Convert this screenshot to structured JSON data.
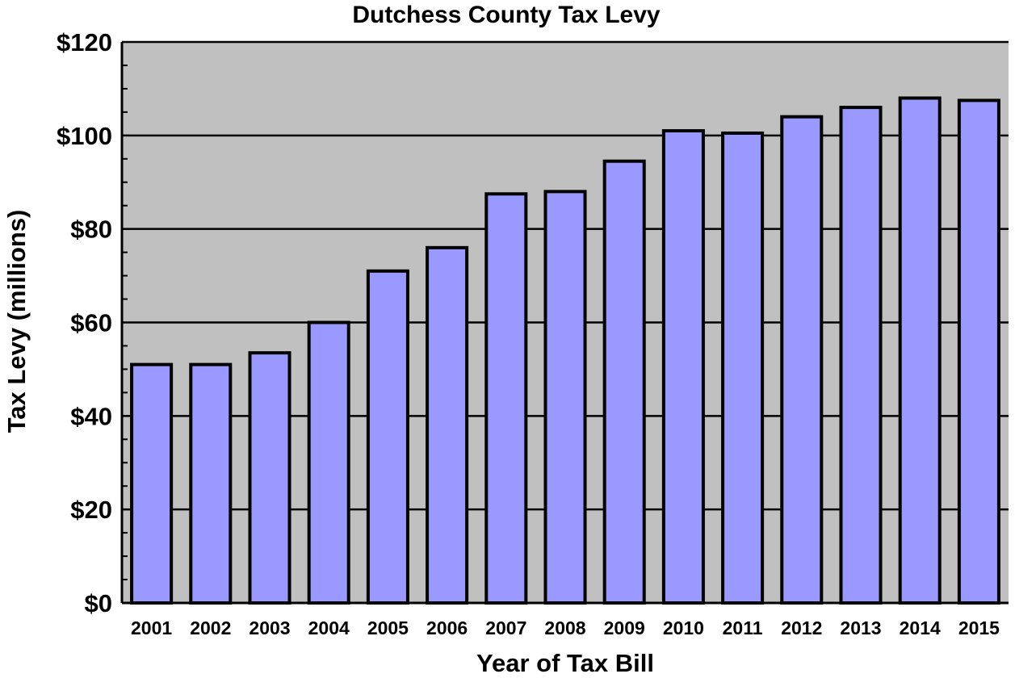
{
  "chart_data": {
    "type": "bar",
    "title": "Dutchess County Tax Levy",
    "xlabel": "Year of Tax Bill",
    "ylabel": "Tax Levy (millions)",
    "categories": [
      "2001",
      "2002",
      "2003",
      "2004",
      "2005",
      "2006",
      "2007",
      "2008",
      "2009",
      "2010",
      "2011",
      "2012",
      "2013",
      "2014",
      "2015"
    ],
    "values": [
      51,
      51,
      53.5,
      60,
      71,
      76,
      87.5,
      88,
      94.5,
      101,
      100.5,
      104,
      106,
      108,
      107.5
    ],
    "ylim": [
      0,
      120
    ],
    "yticks": [
      0,
      20,
      40,
      60,
      80,
      100,
      120
    ],
    "ytick_labels": [
      "$0",
      "$20",
      "$40",
      "$60",
      "$80",
      "$100",
      "$120"
    ],
    "grid": true,
    "legend": "none",
    "colors": {
      "plot_background": "#c0c0c0",
      "bar_fill": "#9999ff",
      "bar_stroke": "#000000",
      "gridline": "#000000"
    }
  }
}
